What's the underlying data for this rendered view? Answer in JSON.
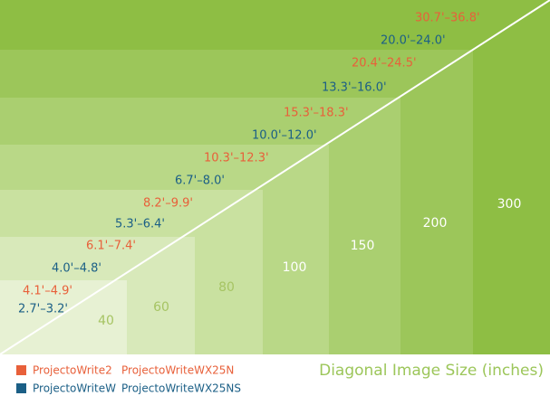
{
  "sizes": [
    {
      "label": "40",
      "throw_a": "4.1'–4.9'",
      "throw_b": "2.7'–3.2'"
    },
    {
      "label": "60",
      "throw_a": "6.1'–7.4'",
      "throw_b": "4.0'–4.8'"
    },
    {
      "label": "80",
      "throw_a": "8.2'–9.9'",
      "throw_b": "5.3'–6.4'"
    },
    {
      "label": "100",
      "throw_a": "10.3'–12.3'",
      "throw_b": "6.7'–8.0'"
    },
    {
      "label": "150",
      "throw_a": "15.3'–18.3'",
      "throw_b": "10.0'–12.0'"
    },
    {
      "label": "200",
      "throw_a": "20.4'–24.5'",
      "throw_b": "13.3'–16.0'"
    },
    {
      "label": "300",
      "throw_a": "30.7'–36.8'",
      "throw_b": "20.0'–24.0'"
    }
  ],
  "axis_title": "Diagonal Image Size (inches)",
  "legend": [
    {
      "names": [
        "ProjectoWrite2",
        "ProjectoWriteWX25N"
      ]
    },
    {
      "names": [
        "ProjectoWriteW",
        "ProjectoWriteWX25NS"
      ]
    }
  ]
}
